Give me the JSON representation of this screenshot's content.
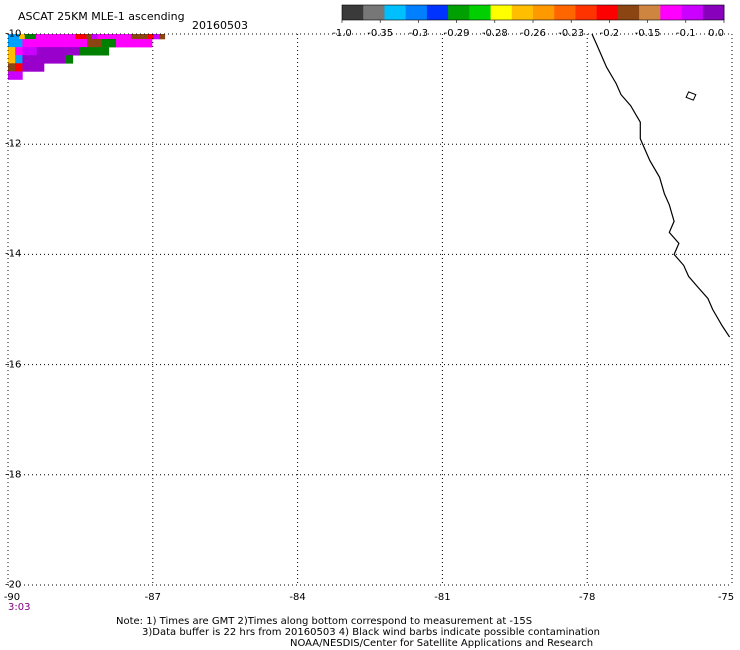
{
  "header": {
    "title": "ASCAT 25KM MLE-1 ascending",
    "date": "20160503"
  },
  "colorbar": {
    "colors": [
      "#3a3a3a",
      "#777777",
      "#00bfff",
      "#0080ff",
      "#0033ff",
      "#00a000",
      "#00d000",
      "#ffff00",
      "#ffbf00",
      "#ff9900",
      "#ff6600",
      "#ff3300",
      "#ff0000",
      "#8b4513",
      "#cd853f",
      "#ff00ff",
      "#cc00ff",
      "#8800bb"
    ],
    "labels": [
      "-1.0",
      "-0.35",
      "-0.3",
      "-0.29",
      "-0.28",
      "-0.26",
      "-0.23",
      "-0.2",
      "-0.15",
      "-0.1",
      "0.0"
    ]
  },
  "axes": {
    "x_ticks": [
      "-90",
      "-87",
      "-84",
      "-81",
      "-78",
      "-75"
    ],
    "y_ticks": [
      "-10",
      "-12",
      "-14",
      "-16",
      "-18",
      "-20"
    ],
    "lon_range": [
      -90,
      -75
    ],
    "lat_range": [
      -20,
      -10
    ],
    "grid": "dotted"
  },
  "time_label": "3:03",
  "notes": {
    "line1": "Note: 1) Times are GMT 2)Times along bottom correspond to measurement at -15S",
    "line2": "3)Data buffer is 22 hrs from 20160503 4) Black wind barbs indicate possible contamination",
    "line3": "NOAA/NESDIS/Center for Satellite Applications and Research"
  },
  "data_cells": {
    "colors": [
      "#00a0ff",
      "#ffbf00",
      "#008000",
      "#ff00ff",
      "#cc00ff",
      "#9900cc",
      "#ff0000",
      "#8b4513",
      "#00ff00",
      "#ff6600",
      "#dd00dd",
      "#a000c0"
    ],
    "rows": [
      "aabccdddddddggheddddddhhhgeh",
      "aadddddddddhhccddddd",
      "bdeeffffffcccc",
      "baffffffc",
      "hgfff",
      "ee"
    ]
  },
  "coastline": {
    "points": [
      [
        -77.9,
        -10.0
      ],
      [
        -77.8,
        -10.2
      ],
      [
        -77.7,
        -10.4
      ],
      [
        -77.6,
        -10.6
      ],
      [
        -77.4,
        -10.9
      ],
      [
        -77.3,
        -11.1
      ],
      [
        -77.1,
        -11.3
      ],
      [
        -76.9,
        -11.6
      ],
      [
        -76.9,
        -11.9
      ],
      [
        -76.8,
        -12.1
      ],
      [
        -76.7,
        -12.3
      ],
      [
        -76.5,
        -12.6
      ],
      [
        -76.4,
        -12.9
      ],
      [
        -76.3,
        -13.1
      ],
      [
        -76.2,
        -13.4
      ],
      [
        -76.3,
        -13.6
      ],
      [
        -76.1,
        -13.8
      ],
      [
        -76.2,
        -14.0
      ],
      [
        -76.0,
        -14.2
      ],
      [
        -75.9,
        -14.4
      ],
      [
        -75.7,
        -14.6
      ],
      [
        -75.5,
        -14.8
      ],
      [
        -75.4,
        -15.0
      ],
      [
        -75.2,
        -15.3
      ],
      [
        -75.05,
        -15.5
      ]
    ],
    "island": [
      [
        -75.9,
        -11.05
      ],
      [
        -75.75,
        -11.1
      ],
      [
        -75.8,
        -11.2
      ],
      [
        -75.95,
        -11.15
      ]
    ]
  }
}
